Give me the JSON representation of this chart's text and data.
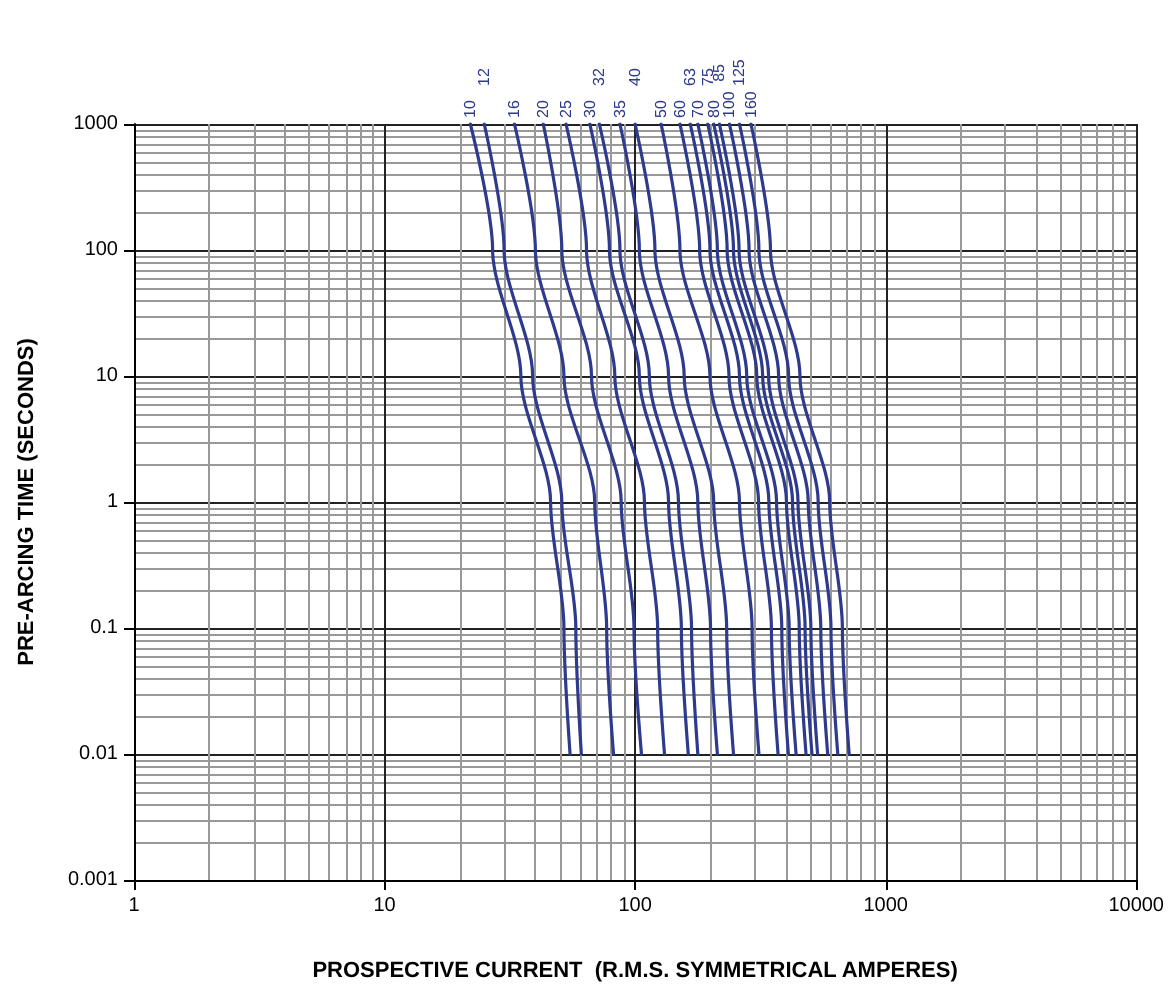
{
  "chart_data": {
    "type": "line",
    "xlabel": "PROSPECTIVE CURRENT  (R.M.S. SYMMETRICAL AMPERES)",
    "ylabel": "PRE-ARCING TIME (SECONDS)",
    "log": "xy",
    "grid": true,
    "legend": false,
    "marker": "none",
    "line_style": "solid",
    "xlim": [
      1,
      10000
    ],
    "xticks": [
      1,
      10,
      100,
      1000,
      10000
    ],
    "ylim": [
      0.001,
      1000
    ],
    "yticks": [
      0.001,
      0.01,
      0.1,
      1,
      10,
      100,
      1000
    ],
    "series": [
      {
        "name": "10",
        "color": "#2e3a8c",
        "x": [
          22,
          27,
          35,
          46,
          52,
          55
        ],
        "values": [
          1000,
          100,
          10,
          1,
          0.1,
          0.01
        ]
      },
      {
        "name": "12",
        "color": "#2e3a8c",
        "x": [
          25,
          30,
          39,
          51,
          58,
          61
        ],
        "values": [
          1000,
          100,
          10,
          1,
          0.1,
          0.01
        ]
      },
      {
        "name": "16",
        "color": "#2e3a8c",
        "x": [
          33,
          40,
          52,
          69,
          77,
          82
        ],
        "values": [
          1000,
          100,
          10,
          1,
          0.1,
          0.01
        ]
      },
      {
        "name": "20",
        "color": "#2e3a8c",
        "x": [
          43,
          51,
          67,
          88,
          99,
          106
        ],
        "values": [
          1000,
          100,
          10,
          1,
          0.1,
          0.01
        ]
      },
      {
        "name": "25",
        "color": "#2e3a8c",
        "x": [
          53,
          64,
          83,
          109,
          123,
          131
        ],
        "values": [
          1000,
          100,
          10,
          1,
          0.1,
          0.01
        ]
      },
      {
        "name": "30",
        "color": "#2e3a8c",
        "x": [
          66,
          79,
          104,
          136,
          153,
          163
        ],
        "values": [
          1000,
          100,
          10,
          1,
          0.1,
          0.01
        ]
      },
      {
        "name": "32",
        "color": "#2e3a8c",
        "x": [
          72,
          87,
          114,
          149,
          168,
          178
        ],
        "values": [
          1000,
          100,
          10,
          1,
          0.1,
          0.01
        ]
      },
      {
        "name": "35",
        "color": "#2e3a8c",
        "x": [
          87,
          104,
          136,
          178,
          200,
          213
        ],
        "values": [
          1000,
          100,
          10,
          1,
          0.1,
          0.01
        ]
      },
      {
        "name": "40",
        "color": "#2e3a8c",
        "x": [
          100,
          120,
          157,
          206,
          232,
          247
        ],
        "values": [
          1000,
          100,
          10,
          1,
          0.1,
          0.01
        ]
      },
      {
        "name": "50",
        "color": "#2e3a8c",
        "x": [
          127,
          151,
          199,
          261,
          293,
          312
        ],
        "values": [
          1000,
          100,
          10,
          1,
          0.1,
          0.01
        ]
      },
      {
        "name": "60",
        "color": "#2e3a8c",
        "x": [
          151,
          181,
          237,
          311,
          350,
          372
        ],
        "values": [
          1000,
          100,
          10,
          1,
          0.1,
          0.01
        ]
      },
      {
        "name": "63",
        "color": "#2e3a8c",
        "x": [
          166,
          199,
          261,
          342,
          385,
          409
        ],
        "values": [
          1000,
          100,
          10,
          1,
          0.1,
          0.01
        ]
      },
      {
        "name": "70",
        "color": "#2e3a8c",
        "x": [
          178,
          213,
          279,
          367,
          412,
          439
        ],
        "values": [
          1000,
          100,
          10,
          1,
          0.1,
          0.01
        ]
      },
      {
        "name": "75",
        "color": "#2e3a8c",
        "x": [
          195,
          233,
          306,
          402,
          452,
          481
        ],
        "values": [
          1000,
          100,
          10,
          1,
          0.1,
          0.01
        ]
      },
      {
        "name": "80",
        "color": "#2e3a8c",
        "x": [
          206,
          247,
          323,
          425,
          477,
          508
        ],
        "values": [
          1000,
          100,
          10,
          1,
          0.1,
          0.01
        ]
      },
      {
        "name": "85",
        "color": "#2e3a8c",
        "x": [
          217,
          260,
          341,
          447,
          503,
          535
        ],
        "values": [
          1000,
          100,
          10,
          1,
          0.1,
          0.01
        ]
      },
      {
        "name": "100",
        "color": "#2e3a8c",
        "x": [
          238,
          285,
          374,
          491,
          551,
          587
        ],
        "values": [
          1000,
          100,
          10,
          1,
          0.1,
          0.01
        ]
      },
      {
        "name": "125",
        "color": "#2e3a8c",
        "x": [
          261,
          312,
          410,
          538,
          605,
          644
        ],
        "values": [
          1000,
          100,
          10,
          1,
          0.1,
          0.01
        ]
      },
      {
        "name": "160",
        "color": "#2e3a8c",
        "x": [
          290,
          347,
          455,
          598,
          672,
          715
        ],
        "values": [
          1000,
          100,
          10,
          1,
          0.1,
          0.01
        ]
      }
    ]
  }
}
